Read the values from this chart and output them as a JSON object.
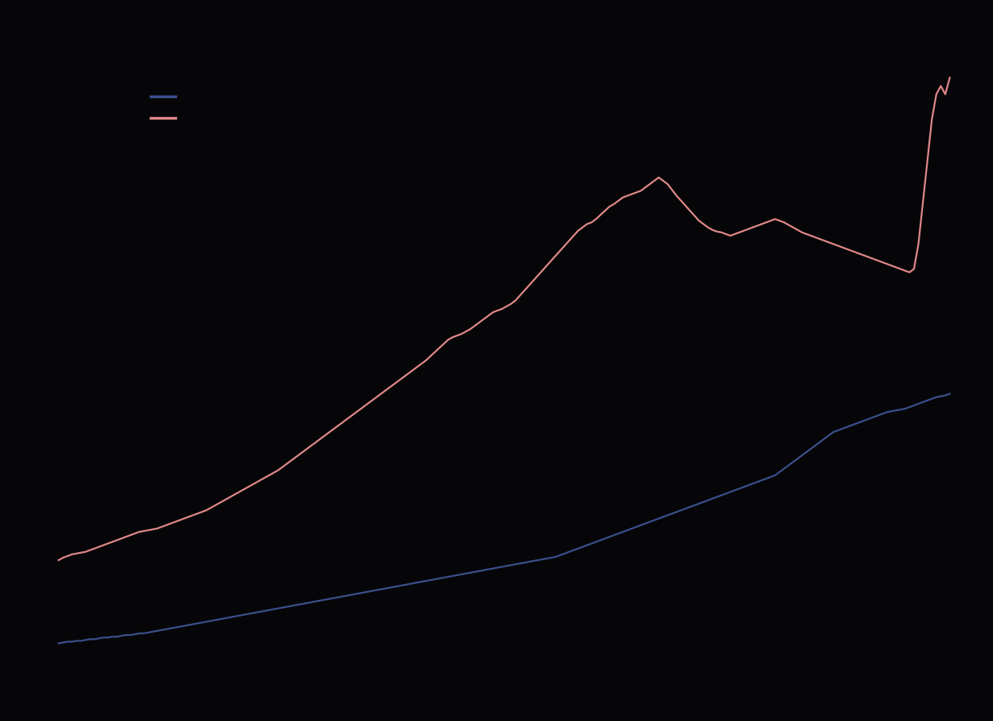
{
  "background_color": "#060608",
  "line1_color": "#3a4f8c",
  "line2_color": "#e08888",
  "line1_label": " ",
  "line2_label": " ",
  "figsize": [
    12.46,
    9.05
  ],
  "dpi": 100,
  "blue_values": [
    200,
    201,
    202,
    202,
    203,
    203,
    204,
    205,
    205,
    206,
    207,
    207,
    208,
    208,
    209,
    210,
    210,
    211,
    212,
    212,
    213,
    214,
    215,
    216,
    217,
    218,
    219,
    220,
    221,
    222,
    223,
    224,
    225,
    226,
    227,
    228,
    229,
    230,
    231,
    232,
    233,
    234,
    235,
    236,
    237,
    238,
    239,
    240,
    241,
    242,
    243,
    244,
    245,
    246,
    247,
    248,
    249,
    250,
    251,
    252,
    253,
    254,
    255,
    256,
    257,
    258,
    259,
    260,
    261,
    262,
    263,
    264,
    265,
    266,
    267,
    268,
    269,
    270,
    271,
    272,
    273,
    274,
    275,
    276,
    277,
    278,
    279,
    280,
    281,
    282,
    283,
    284,
    285,
    286,
    287,
    288,
    289,
    290,
    291,
    292,
    293,
    294,
    295,
    296,
    297,
    298,
    299,
    300,
    301,
    302,
    303,
    304,
    306,
    308,
    310,
    312,
    314,
    316,
    318,
    320,
    322,
    324,
    326,
    328,
    330,
    332,
    334,
    336,
    338,
    340,
    342,
    344,
    346,
    348,
    350,
    352,
    354,
    356,
    358,
    360,
    362,
    364,
    366,
    368,
    370,
    372,
    374,
    376,
    378,
    380,
    382,
    384,
    386,
    388,
    390,
    392,
    394,
    396,
    398,
    400,
    402,
    406,
    410,
    414,
    418,
    422,
    426,
    430,
    434,
    438,
    442,
    446,
    450,
    454,
    456,
    458,
    460,
    462,
    464,
    466,
    468,
    470,
    472,
    474,
    476,
    478,
    479,
    480,
    481,
    482,
    484,
    486,
    488,
    490,
    492,
    494,
    496,
    497,
    498,
    500
  ],
  "pink_values": [
    300,
    303,
    305,
    307,
    308,
    309,
    310,
    312,
    314,
    316,
    318,
    320,
    322,
    324,
    326,
    328,
    330,
    332,
    334,
    335,
    336,
    337,
    338,
    340,
    342,
    344,
    346,
    348,
    350,
    352,
    354,
    356,
    358,
    360,
    363,
    366,
    369,
    372,
    375,
    378,
    381,
    384,
    387,
    390,
    393,
    396,
    399,
    402,
    405,
    408,
    412,
    416,
    420,
    424,
    428,
    432,
    436,
    440,
    444,
    448,
    452,
    456,
    460,
    464,
    468,
    472,
    476,
    480,
    484,
    488,
    492,
    496,
    500,
    504,
    508,
    512,
    516,
    520,
    524,
    528,
    532,
    536,
    540,
    545,
    550,
    555,
    560,
    565,
    568,
    570,
    572,
    575,
    578,
    582,
    586,
    590,
    594,
    598,
    600,
    602,
    605,
    608,
    612,
    618,
    624,
    630,
    636,
    642,
    648,
    654,
    660,
    666,
    672,
    678,
    684,
    690,
    696,
    700,
    704,
    706,
    710,
    715,
    720,
    725,
    728,
    732,
    736,
    738,
    740,
    742,
    744,
    748,
    752,
    756,
    760,
    756,
    752,
    745,
    738,
    732,
    726,
    720,
    714,
    708,
    704,
    700,
    697,
    695,
    694,
    692,
    690,
    692,
    694,
    696,
    698,
    700,
    702,
    704,
    706,
    708,
    710,
    708,
    706,
    703,
    700,
    697,
    694,
    692,
    690,
    688,
    686,
    684,
    682,
    680,
    678,
    676,
    674,
    672,
    670,
    668,
    666,
    664,
    662,
    660,
    658,
    656,
    654,
    652,
    650,
    648,
    646,
    650,
    680,
    730,
    780,
    830,
    860,
    870,
    860,
    880
  ]
}
